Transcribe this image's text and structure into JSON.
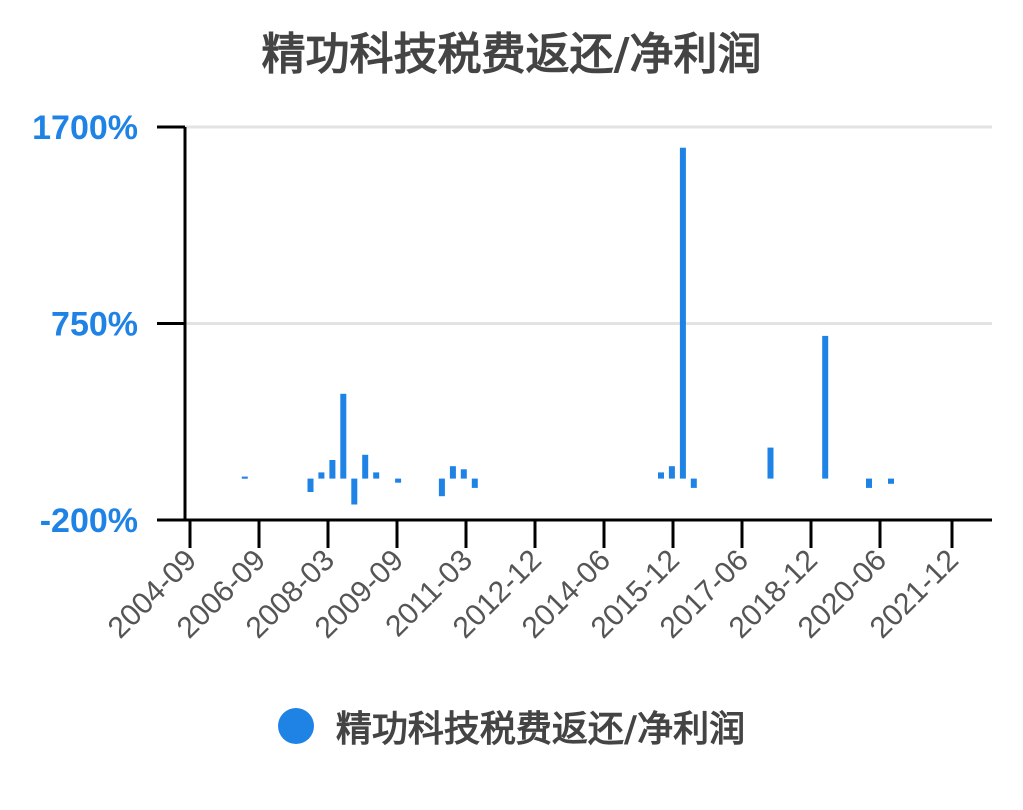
{
  "chart_data": {
    "type": "bar",
    "title": "精功科技税费返还/净利润",
    "xlabel": "",
    "ylabel": "",
    "ylim": [
      -200,
      1700
    ],
    "y_ticks": [
      {
        "value": 1700,
        "label": "1700%"
      },
      {
        "value": 750,
        "label": "750%"
      },
      {
        "value": -200,
        "label": "-200%"
      }
    ],
    "x_ticks": [
      "2004-09",
      "2006-09",
      "2008-03",
      "2009-09",
      "2011-03",
      "2012-12",
      "2014-06",
      "2015-12",
      "2017-06",
      "2018-12",
      "2020-06",
      "2021-12"
    ],
    "grid": true,
    "legend_position": "bottom",
    "series": [
      {
        "name": "精功科技税费返还/净利润",
        "color": "#1f83e6",
        "points": [
          {
            "x": "2005-12",
            "y": 10
          },
          {
            "x": "2007-06",
            "y": -65
          },
          {
            "x": "2007-09",
            "y": 30
          },
          {
            "x": "2007-12",
            "y": 90
          },
          {
            "x": "2008-03",
            "y": 410
          },
          {
            "x": "2008-06",
            "y": -125
          },
          {
            "x": "2008-09",
            "y": 115
          },
          {
            "x": "2008-12",
            "y": 30
          },
          {
            "x": "2009-06",
            "y": -20
          },
          {
            "x": "2010-06",
            "y": -85
          },
          {
            "x": "2010-09",
            "y": 60
          },
          {
            "x": "2010-12",
            "y": 45
          },
          {
            "x": "2011-03",
            "y": -45
          },
          {
            "x": "2015-06",
            "y": 30
          },
          {
            "x": "2015-09",
            "y": 60
          },
          {
            "x": "2015-12",
            "y": 1600
          },
          {
            "x": "2016-03",
            "y": -45
          },
          {
            "x": "2017-12",
            "y": 150
          },
          {
            "x": "2019-03",
            "y": 690
          },
          {
            "x": "2020-03",
            "y": -45
          },
          {
            "x": "2020-09",
            "y": -25
          }
        ]
      }
    ]
  }
}
